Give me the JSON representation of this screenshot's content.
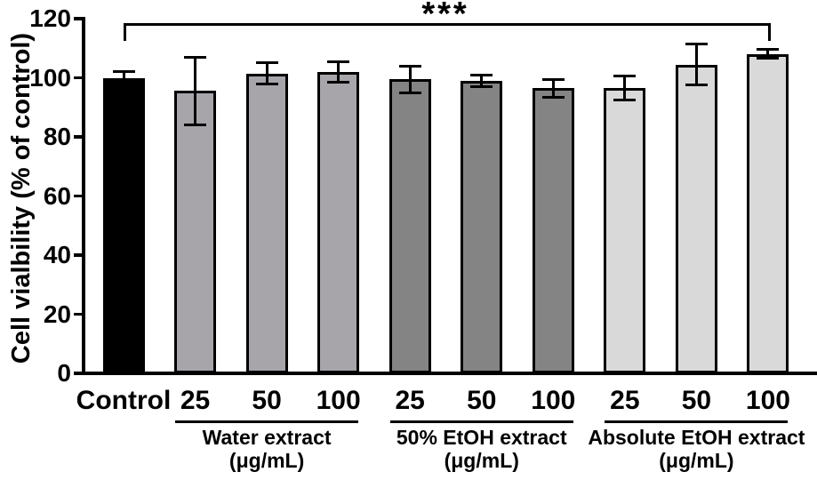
{
  "chart_data": {
    "type": "bar",
    "title": "",
    "ylabel": "Cell vialbility (% of control)",
    "xlabel": "",
    "ylim": [
      0,
      120
    ],
    "yticks": [
      0,
      20,
      40,
      60,
      80,
      100,
      120
    ],
    "grid": false,
    "legend": null,
    "bar_border_color": "#000000",
    "error_bar_color": "#000000",
    "significance": {
      "label": "***",
      "from": "Control",
      "to": "Absolute EtOH extract 100"
    },
    "bars": [
      {
        "label": "Control",
        "group_index": -1,
        "value": 100,
        "error": 2,
        "color": "#000000"
      },
      {
        "label": "25",
        "group_index": 0,
        "value": 95.5,
        "error": 11.5,
        "color": "#a7a5aa"
      },
      {
        "label": "50",
        "group_index": 0,
        "value": 101.5,
        "error": 3.5,
        "color": "#a7a5aa"
      },
      {
        "label": "100",
        "group_index": 0,
        "value": 102,
        "error": 3.5,
        "color": "#a7a5aa"
      },
      {
        "label": "25",
        "group_index": 1,
        "value": 99.5,
        "error": 4.5,
        "color": "#848484"
      },
      {
        "label": "50",
        "group_index": 1,
        "value": 99,
        "error": 2,
        "color": "#848484"
      },
      {
        "label": "100",
        "group_index": 1,
        "value": 96.5,
        "error": 3,
        "color": "#848484"
      },
      {
        "label": "25",
        "group_index": 2,
        "value": 96.5,
        "error": 4,
        "color": "#d9d9d9"
      },
      {
        "label": "50",
        "group_index": 2,
        "value": 104.5,
        "error": 7,
        "color": "#d9d9d9"
      },
      {
        "label": "100",
        "group_index": 2,
        "value": 108,
        "error": 1.5,
        "color": "#d9d9d9"
      }
    ],
    "groups": [
      {
        "slug": "water-extract",
        "name": "Water extract",
        "unit": "(μg/mL)",
        "bar_indices": [
          1,
          2,
          3
        ]
      },
      {
        "slug": "etoh50-extract",
        "name": "50% EtOH extract",
        "unit": "(μg/mL)",
        "bar_indices": [
          4,
          5,
          6
        ]
      },
      {
        "slug": "absolute-etoh-extract",
        "name": "Absolute EtOH extract",
        "unit": "(μg/mL)",
        "bar_indices": [
          7,
          8,
          9
        ]
      }
    ]
  }
}
